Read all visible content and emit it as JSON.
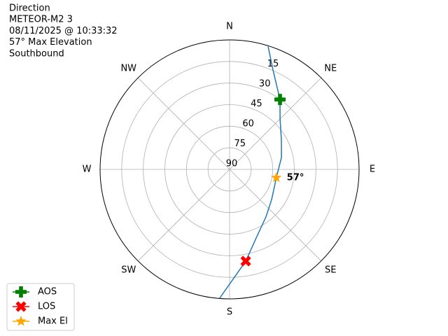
{
  "chart_data": {
    "type": "polar",
    "title": [
      "Direction",
      "METEOR-M2 3",
      "08/11/2025 @ 10:33:32",
      "57° Max Elevation",
      "Southbound"
    ],
    "rlim": [
      90,
      0
    ],
    "rticks": [
      15,
      30,
      45,
      60,
      75,
      90
    ],
    "thetaticks": [
      {
        "value": 0,
        "label": "N"
      },
      {
        "value": 45,
        "label": "NE"
      },
      {
        "value": 90,
        "label": "E"
      },
      {
        "value": 135,
        "label": "SE"
      },
      {
        "value": 180,
        "label": "S"
      },
      {
        "value": 225,
        "label": "SW"
      },
      {
        "value": 270,
        "label": "W"
      },
      {
        "value": 315,
        "label": "NW"
      }
    ],
    "grid": true,
    "track": {
      "color": "#1f77b4",
      "azimuth": [
        17.4,
        23.6,
        35.8,
        45,
        60.4,
        77,
        100,
        125.8,
        142.6,
        158.8,
        170,
        184.4
      ],
      "elevation": [
        0.5,
        14.6,
        30.1,
        40.4,
        48.6,
        53,
        57,
        54,
        48.4,
        38.9,
        25.3,
        0.2
      ]
    },
    "markers": [
      {
        "name": "AOS",
        "color": "#008000",
        "marker": "plus",
        "azimuth": 35.8,
        "elevation": 30.1
      },
      {
        "name": "LOS",
        "color": "#ff0000",
        "marker": "x",
        "azimuth": 170,
        "elevation": 25.3
      },
      {
        "name": "Max El",
        "color": "#ffa500",
        "marker": "star",
        "azimuth": 100,
        "elevation": 57,
        "value_labels": [
          "57°"
        ]
      }
    ],
    "legend": "lower left"
  }
}
